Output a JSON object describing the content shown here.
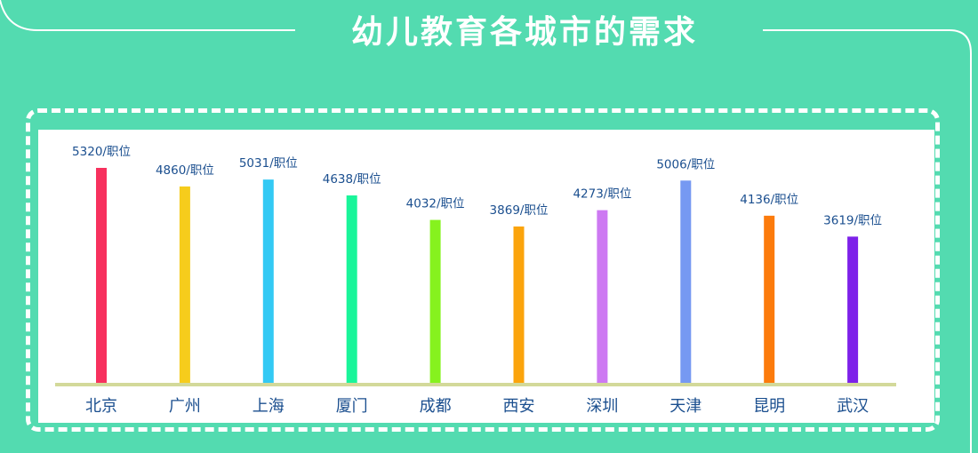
{
  "title": "幼儿教育各城市的需求",
  "chart_data": {
    "type": "bar",
    "categories": [
      "北京",
      "广州",
      "上海",
      "厦门",
      "成都",
      "西安",
      "深圳",
      "天津",
      "昆明",
      "武汉"
    ],
    "values": [
      5320,
      4860,
      5031,
      4638,
      4032,
      3869,
      4273,
      5006,
      4136,
      3619
    ],
    "data_labels": [
      "5320/职位",
      "4860/职位",
      "5031/职位",
      "4638/职位",
      "4032/职位",
      "3869/职位",
      "4273/职位",
      "5006/职位",
      "4136/职位",
      "3619/职位"
    ],
    "colors": [
      "#f7315e",
      "#f6cc1c",
      "#33c9f4",
      "#19f59a",
      "#86f21e",
      "#fba40c",
      "#cd79f2",
      "#7699f2",
      "#fc7b0c",
      "#7d21e9"
    ],
    "baseline_color": "#d3d99a",
    "title": "幼儿教育各城市的需求",
    "xlabel": "",
    "ylabel": "",
    "grid": false,
    "legend": "none"
  }
}
